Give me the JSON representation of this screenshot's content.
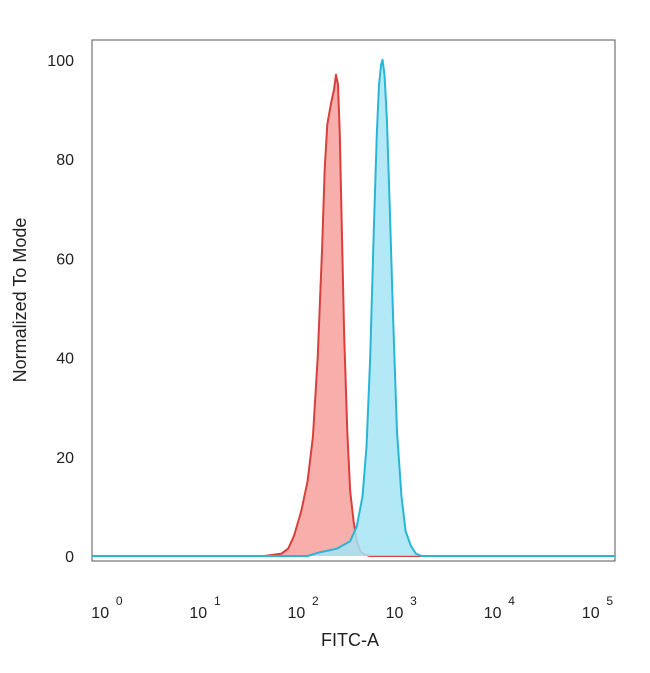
{
  "chart_data": {
    "type": "area",
    "title": "",
    "xlabel": "FITC-A",
    "ylabel": "Normalized To Mode",
    "xscale": "log",
    "xlim": [
      0.7,
      150000
    ],
    "ylim": [
      -1,
      104
    ],
    "y_ticks": [
      0,
      20,
      40,
      60,
      80,
      100
    ],
    "x_ticks": [
      {
        "base": "10",
        "exp": "0"
      },
      {
        "base": "10",
        "exp": "1"
      },
      {
        "base": "10",
        "exp": "2"
      },
      {
        "base": "10",
        "exp": "3"
      },
      {
        "base": "10",
        "exp": "4"
      },
      {
        "base": "10",
        "exp": "5"
      }
    ],
    "grid": false,
    "legend": "none",
    "series": [
      {
        "color": "#d9403d",
        "fill": "#f7a09c",
        "points": [
          [
            0.7,
            0
          ],
          [
            40,
            0
          ],
          [
            60,
            0.5
          ],
          [
            70,
            1.5
          ],
          [
            80,
            4
          ],
          [
            95,
            9
          ],
          [
            110,
            15
          ],
          [
            125,
            24
          ],
          [
            140,
            40
          ],
          [
            155,
            62
          ],
          [
            165,
            78
          ],
          [
            175,
            87
          ],
          [
            190,
            91
          ],
          [
            205,
            94
          ],
          [
            215,
            97
          ],
          [
            225,
            95
          ],
          [
            235,
            85
          ],
          [
            245,
            68
          ],
          [
            260,
            45
          ],
          [
            280,
            25
          ],
          [
            300,
            13
          ],
          [
            325,
            7
          ],
          [
            350,
            3
          ],
          [
            380,
            1
          ],
          [
            420,
            0.3
          ],
          [
            480,
            0
          ],
          [
            150000,
            0
          ]
        ]
      },
      {
        "color": "#29b6d6",
        "fill": "#a6e4f5",
        "points": [
          [
            0.7,
            0
          ],
          [
            110,
            0
          ],
          [
            150,
            0.8
          ],
          [
            220,
            1.5
          ],
          [
            300,
            3
          ],
          [
            350,
            6
          ],
          [
            400,
            12
          ],
          [
            440,
            22
          ],
          [
            480,
            40
          ],
          [
            520,
            65
          ],
          [
            560,
            85
          ],
          [
            590,
            95
          ],
          [
            620,
            99
          ],
          [
            640,
            100
          ],
          [
            670,
            97
          ],
          [
            710,
            88
          ],
          [
            760,
            70
          ],
          [
            820,
            48
          ],
          [
            900,
            25
          ],
          [
            1000,
            12
          ],
          [
            1100,
            5
          ],
          [
            1250,
            2
          ],
          [
            1400,
            0.5
          ],
          [
            1600,
            0
          ],
          [
            150000,
            0
          ]
        ]
      }
    ]
  }
}
